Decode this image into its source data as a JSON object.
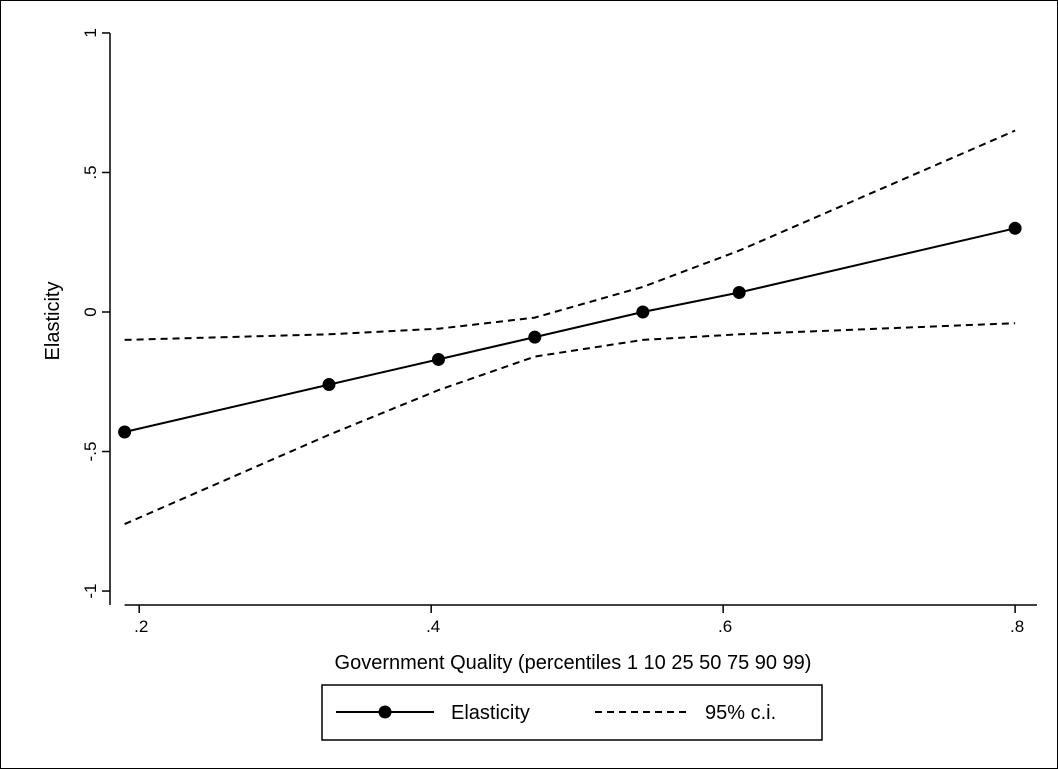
{
  "chart_data": {
    "type": "line",
    "xlabel": "Government Quality (percentiles 1 10 25 50 75 90 99)",
    "ylabel": "Elasticity",
    "xlim": [
      0.18,
      0.815
    ],
    "ylim": [
      -1.05,
      1.05
    ],
    "x_ticks": [
      {
        "value": 0.2,
        "label": ".2"
      },
      {
        "value": 0.4,
        "label": ".4"
      },
      {
        "value": 0.6,
        "label": ".6"
      },
      {
        "value": 0.8,
        "label": ".8"
      }
    ],
    "y_ticks": [
      {
        "value": -1,
        "label": "-1"
      },
      {
        "value": -0.5,
        "label": "-.5"
      },
      {
        "value": 0,
        "label": "0"
      },
      {
        "value": 0.5,
        "label": ".5"
      },
      {
        "value": 1,
        "label": "1"
      }
    ],
    "grid": false,
    "legend_position": "bottom",
    "series": [
      {
        "name": "Elasticity",
        "style": "solid-markers",
        "color": "#000000",
        "x": [
          0.19,
          0.33,
          0.405,
          0.471,
          0.545,
          0.611,
          0.8
        ],
        "y": [
          -0.43,
          -0.26,
          -0.17,
          -0.09,
          0.0,
          0.07,
          0.3
        ]
      },
      {
        "name": "95% c.i.",
        "style": "dashed",
        "color": "#000000",
        "x": [
          0.19,
          0.33,
          0.405,
          0.471,
          0.545,
          0.611,
          0.8
        ],
        "y": [
          -0.1,
          -0.08,
          -0.06,
          -0.02,
          0.09,
          0.22,
          0.65
        ]
      },
      {
        "name": "95% c.i.",
        "style": "dashed",
        "color": "#000000",
        "legend": false,
        "x": [
          0.19,
          0.33,
          0.405,
          0.471,
          0.545,
          0.611,
          0.8
        ],
        "y": [
          -0.76,
          -0.44,
          -0.28,
          -0.16,
          -0.1,
          -0.08,
          -0.04
        ]
      }
    ]
  }
}
